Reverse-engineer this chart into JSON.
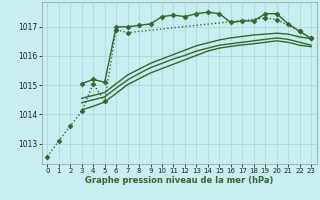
{
  "xlabel": "Graphe pression niveau de la mer (hPa)",
  "background_color": "#c8eef0",
  "grid_color": "#b0d8da",
  "line_color": "#2d6a2d",
  "xlim": [
    -0.5,
    23.5
  ],
  "ylim": [
    1012.3,
    1017.85
  ],
  "xticks": [
    0,
    1,
    2,
    3,
    4,
    5,
    6,
    7,
    8,
    9,
    10,
    11,
    12,
    13,
    14,
    15,
    16,
    17,
    18,
    19,
    20,
    21,
    22,
    23
  ],
  "yticks": [
    1013,
    1014,
    1015,
    1016,
    1017
  ],
  "series": [
    {
      "x": [
        0,
        1,
        2,
        3,
        4,
        5,
        6,
        7,
        19,
        20,
        22,
        23
      ],
      "y": [
        1012.55,
        1013.1,
        1013.6,
        1014.1,
        1015.05,
        1014.45,
        1016.9,
        1016.8,
        1017.3,
        1017.25,
        1016.85,
        1016.6
      ],
      "marker": "D",
      "markersize": 2.5,
      "linewidth": 1.0,
      "linestyle": ":"
    },
    {
      "x": [
        3,
        4,
        5,
        6,
        7,
        8,
        9,
        10,
        11,
        12,
        13,
        14,
        15,
        16,
        17,
        18,
        19,
        20,
        21,
        22,
        23
      ],
      "y": [
        1015.05,
        1015.2,
        1015.1,
        1017.0,
        1017.0,
        1017.05,
        1017.1,
        1017.35,
        1017.4,
        1017.35,
        1017.45,
        1017.5,
        1017.45,
        1017.15,
        1017.2,
        1017.2,
        1017.45,
        1017.45,
        1017.1,
        1016.85,
        1016.6
      ],
      "marker": "D",
      "markersize": 2.5,
      "linewidth": 1.0,
      "linestyle": "-"
    },
    {
      "x": [
        3,
        4,
        5,
        6,
        7,
        8,
        9,
        10,
        11,
        12,
        13,
        14,
        15,
        16,
        17,
        18,
        19,
        20,
        21,
        22,
        23
      ],
      "y": [
        1014.55,
        1014.65,
        1014.75,
        1015.05,
        1015.35,
        1015.55,
        1015.75,
        1015.9,
        1016.05,
        1016.2,
        1016.35,
        1016.45,
        1016.55,
        1016.62,
        1016.67,
        1016.72,
        1016.75,
        1016.78,
        1016.75,
        1016.65,
        1016.6
      ],
      "marker": null,
      "markersize": 0,
      "linewidth": 1.0,
      "linestyle": "-"
    },
    {
      "x": [
        3,
        4,
        5,
        6,
        7,
        8,
        9,
        10,
        11,
        12,
        13,
        14,
        15,
        16,
        17,
        18,
        19,
        20,
        21,
        22,
        23
      ],
      "y": [
        1014.15,
        1014.28,
        1014.42,
        1014.72,
        1015.02,
        1015.22,
        1015.42,
        1015.57,
        1015.72,
        1015.87,
        1016.02,
        1016.17,
        1016.27,
        1016.33,
        1016.38,
        1016.42,
        1016.47,
        1016.52,
        1016.47,
        1016.37,
        1016.32
      ],
      "marker": null,
      "markersize": 0,
      "linewidth": 1.0,
      "linestyle": "-"
    },
    {
      "x": [
        3,
        4,
        5,
        6,
        7,
        8,
        9,
        10,
        11,
        12,
        13,
        14,
        15,
        16,
        17,
        18,
        19,
        20,
        21,
        22,
        23
      ],
      "y": [
        1014.4,
        1014.5,
        1014.6,
        1014.9,
        1015.18,
        1015.4,
        1015.6,
        1015.75,
        1015.9,
        1016.02,
        1016.17,
        1016.27,
        1016.37,
        1016.42,
        1016.47,
        1016.52,
        1016.57,
        1016.62,
        1016.57,
        1016.47,
        1016.37
      ],
      "marker": null,
      "markersize": 0,
      "linewidth": 1.0,
      "linestyle": "-"
    }
  ]
}
